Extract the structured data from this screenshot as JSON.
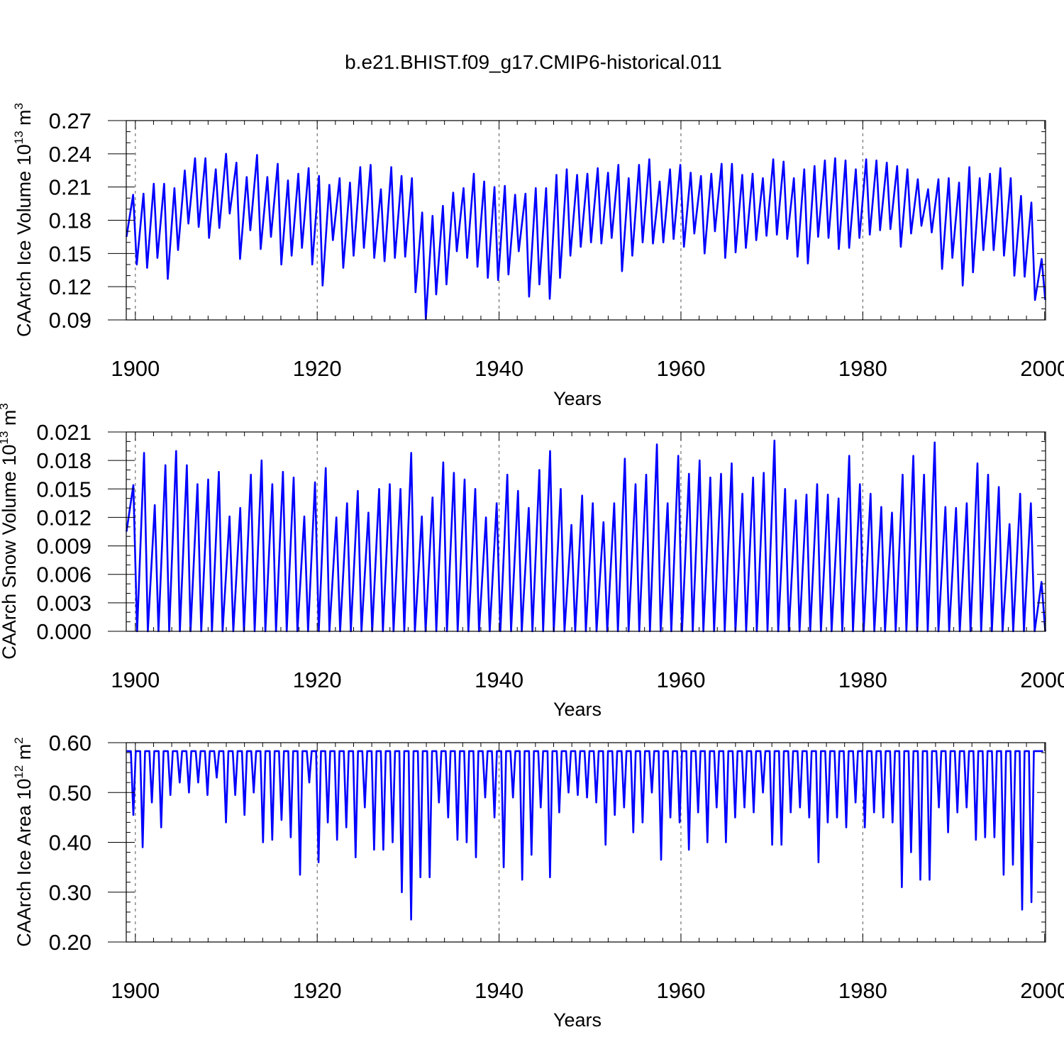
{
  "title": "b.e21.BHIST.f09_g17.CMIP6-historical.011",
  "colors": {
    "line": "#0000ff",
    "frame": "#000000",
    "grid": "#555555"
  },
  "chart_data": [
    {
      "type": "line",
      "id": "ice-volume",
      "ylabel_main": "CAArch Ice Volume 10",
      "ylabel_sup1": "13",
      "ylabel_unit": " m",
      "ylabel_sup2": "3",
      "xlabel": "Years",
      "xlim": [
        1899,
        2000.1
      ],
      "ylim": [
        0.09,
        0.27
      ],
      "yticks": [
        0.09,
        0.12,
        0.15,
        0.18,
        0.21,
        0.24,
        0.27
      ],
      "ytick_labels": [
        "0.09",
        "0.12",
        "0.15",
        "0.18",
        "0.21",
        "0.24",
        "0.27"
      ],
      "ytick_minor": 0.01,
      "xticks": [
        1900,
        1920,
        1940,
        1960,
        1980,
        2000
      ],
      "xtick_labels": [
        "1900",
        "1920",
        "1940",
        "1960",
        "1980",
        "2000"
      ],
      "xtick_minor": 2,
      "grid_x": [
        1900,
        1920,
        1940,
        1960,
        1980
      ],
      "series": [
        {
          "name": "CAArch Ice Volume",
          "annual_max": [
            0.203,
            0.204,
            0.213,
            0.213,
            0.209,
            0.225,
            0.236,
            0.236,
            0.226,
            0.24,
            0.232,
            0.219,
            0.239,
            0.219,
            0.231,
            0.216,
            0.222,
            0.227,
            0.22,
            0.212,
            0.218,
            0.214,
            0.228,
            0.23,
            0.208,
            0.228,
            0.22,
            0.218,
            0.187,
            0.184,
            0.193,
            0.205,
            0.209,
            0.222,
            0.215,
            0.21,
            0.211,
            0.203,
            0.204,
            0.209,
            0.209,
            0.221,
            0.226,
            0.221,
            0.222,
            0.227,
            0.223,
            0.23,
            0.218,
            0.23,
            0.235,
            0.215,
            0.226,
            0.23,
            0.223,
            0.22,
            0.222,
            0.231,
            0.231,
            0.221,
            0.222,
            0.218,
            0.235,
            0.233,
            0.218,
            0.226,
            0.229,
            0.234,
            0.236,
            0.234,
            0.226,
            0.235,
            0.234,
            0.232,
            0.229,
            0.226,
            0.217,
            0.208,
            0.217,
            0.218,
            0.214,
            0.228,
            0.218,
            0.222,
            0.227,
            0.218,
            0.202,
            0.196,
            0.145
          ],
          "annual_min": [
            0.165,
            0.14,
            0.137,
            0.146,
            0.127,
            0.153,
            0.177,
            0.174,
            0.164,
            0.173,
            0.186,
            0.145,
            0.171,
            0.154,
            0.165,
            0.14,
            0.148,
            0.155,
            0.14,
            0.121,
            0.162,
            0.137,
            0.148,
            0.155,
            0.146,
            0.143,
            0.146,
            0.147,
            0.115,
            0.091,
            0.113,
            0.122,
            0.152,
            0.146,
            0.138,
            0.128,
            0.126,
            0.131,
            0.152,
            0.111,
            0.122,
            0.109,
            0.128,
            0.148,
            0.156,
            0.16,
            0.159,
            0.164,
            0.134,
            0.148,
            0.16,
            0.159,
            0.16,
            0.163,
            0.156,
            0.168,
            0.15,
            0.17,
            0.146,
            0.151,
            0.155,
            0.162,
            0.166,
            0.167,
            0.163,
            0.147,
            0.141,
            0.165,
            0.164,
            0.154,
            0.155,
            0.164,
            0.167,
            0.171,
            0.172,
            0.156,
            0.168,
            0.175,
            0.169,
            0.136,
            0.146,
            0.121,
            0.133,
            0.153,
            0.153,
            0.148,
            0.13,
            0.129,
            0.108
          ]
        }
      ]
    },
    {
      "type": "line",
      "id": "snow-volume",
      "ylabel_main": "CAArch Snow Volume 10",
      "ylabel_sup1": "13",
      "ylabel_unit": " m",
      "ylabel_sup2": "3",
      "xlabel": "Years",
      "xlim": [
        1899,
        2000.1
      ],
      "ylim": [
        0.0,
        0.021
      ],
      "yticks": [
        0.0,
        0.003,
        0.006,
        0.009,
        0.012,
        0.015,
        0.018,
        0.021
      ],
      "ytick_labels": [
        "0.000",
        "0.003",
        "0.006",
        "0.009",
        "0.012",
        "0.015",
        "0.018",
        "0.021"
      ],
      "ytick_minor": 0.001,
      "xticks": [
        1900,
        1920,
        1940,
        1960,
        1980,
        2000
      ],
      "xtick_labels": [
        "1900",
        "1920",
        "1940",
        "1960",
        "1980",
        "2000"
      ],
      "xtick_minor": 2,
      "grid_x": [
        1900,
        1920,
        1940,
        1960,
        1980
      ],
      "series": [
        {
          "name": "CAArch Snow Volume",
          "annual_max": [
            0.0154,
            0.0188,
            0.0133,
            0.0175,
            0.019,
            0.0175,
            0.0155,
            0.016,
            0.0168,
            0.0121,
            0.013,
            0.0165,
            0.018,
            0.0155,
            0.0168,
            0.0162,
            0.0121,
            0.0157,
            0.0172,
            0.012,
            0.0135,
            0.0148,
            0.0125,
            0.015,
            0.0155,
            0.015,
            0.0188,
            0.0121,
            0.0141,
            0.0178,
            0.0167,
            0.016,
            0.015,
            0.012,
            0.0135,
            0.0165,
            0.0148,
            0.013,
            0.017,
            0.019,
            0.015,
            0.0112,
            0.0143,
            0.0135,
            0.0115,
            0.0135,
            0.0182,
            0.0155,
            0.0165,
            0.0197,
            0.0135,
            0.0185,
            0.0166,
            0.018,
            0.0162,
            0.0166,
            0.0177,
            0.0145,
            0.0162,
            0.0167,
            0.0201,
            0.015,
            0.0138,
            0.0144,
            0.0155,
            0.0144,
            0.014,
            0.0185,
            0.0155,
            0.0145,
            0.0131,
            0.0125,
            0.0165,
            0.0185,
            0.0165,
            0.0199,
            0.0131,
            0.013,
            0.0135,
            0.0177,
            0.0165,
            0.0152,
            0.0113,
            0.0145,
            0.0135,
            0.0052
          ],
          "annual_min": [
            0.0105,
            0,
            0,
            0,
            0,
            0,
            0,
            0,
            0,
            0,
            0,
            0,
            0,
            0,
            0,
            0,
            0,
            0,
            0,
            0,
            0,
            0,
            0,
            0,
            0,
            0,
            0,
            0,
            0,
            0,
            0,
            0,
            0,
            0,
            0,
            0,
            0,
            0,
            0,
            0,
            0,
            0,
            0,
            0,
            0,
            0,
            0,
            0,
            0,
            0,
            0,
            0,
            0,
            0,
            0,
            0,
            0,
            0,
            0,
            0,
            0,
            0,
            0,
            0,
            0,
            0,
            0,
            0,
            0,
            0,
            0,
            0,
            0,
            0,
            0,
            0,
            0,
            0,
            0,
            0,
            0,
            0,
            0,
            0,
            0,
            0
          ]
        }
      ]
    },
    {
      "type": "line",
      "id": "ice-area",
      "ylabel_main": "CAArch Ice Area 10",
      "ylabel_sup1": "12",
      "ylabel_unit": " m",
      "ylabel_sup2": "2",
      "xlabel": "Years",
      "xlim": [
        1899,
        2000.1
      ],
      "ylim": [
        0.2,
        0.6
      ],
      "yticks": [
        0.2,
        0.3,
        0.4,
        0.5,
        0.6
      ],
      "ytick_labels": [
        "0.20",
        "0.30",
        "0.40",
        "0.50",
        "0.60"
      ],
      "ytick_minor": 0.02,
      "xticks": [
        1900,
        1920,
        1940,
        1960,
        1980,
        2000
      ],
      "xtick_labels": [
        "1900",
        "1920",
        "1940",
        "1960",
        "1980",
        "2000"
      ],
      "xtick_minor": 2,
      "grid_x": [
        1900,
        1920,
        1940,
        1960,
        1980
      ],
      "series": [
        {
          "name": "CAArch Ice Area",
          "plateau": 0.583,
          "annual_min": [
            0.455,
            0.39,
            0.48,
            0.43,
            0.495,
            0.52,
            0.5,
            0.52,
            0.495,
            0.53,
            0.44,
            0.495,
            0.455,
            0.5,
            0.4,
            0.405,
            0.445,
            0.41,
            0.335,
            0.52,
            0.36,
            0.44,
            0.405,
            0.43,
            0.37,
            0.47,
            0.385,
            0.385,
            0.4,
            0.3,
            0.245,
            0.33,
            0.33,
            0.48,
            0.45,
            0.405,
            0.4,
            0.37,
            0.49,
            0.45,
            0.35,
            0.49,
            0.325,
            0.375,
            0.47,
            0.33,
            0.46,
            0.5,
            0.495,
            0.49,
            0.48,
            0.395,
            0.455,
            0.47,
            0.42,
            0.44,
            0.5,
            0.365,
            0.45,
            0.44,
            0.385,
            0.46,
            0.4,
            0.47,
            0.4,
            0.45,
            0.47,
            0.46,
            0.5,
            0.395,
            0.395,
            0.46,
            0.47,
            0.45,
            0.36,
            0.44,
            0.45,
            0.43,
            0.48,
            0.43,
            0.46,
            0.45,
            0.44,
            0.31,
            0.38,
            0.325,
            0.325,
            0.47,
            0.42,
            0.46,
            0.47,
            0.405,
            0.41,
            0.41,
            0.335,
            0.355,
            0.265,
            0.28,
            0.583
          ]
        }
      ]
    }
  ]
}
